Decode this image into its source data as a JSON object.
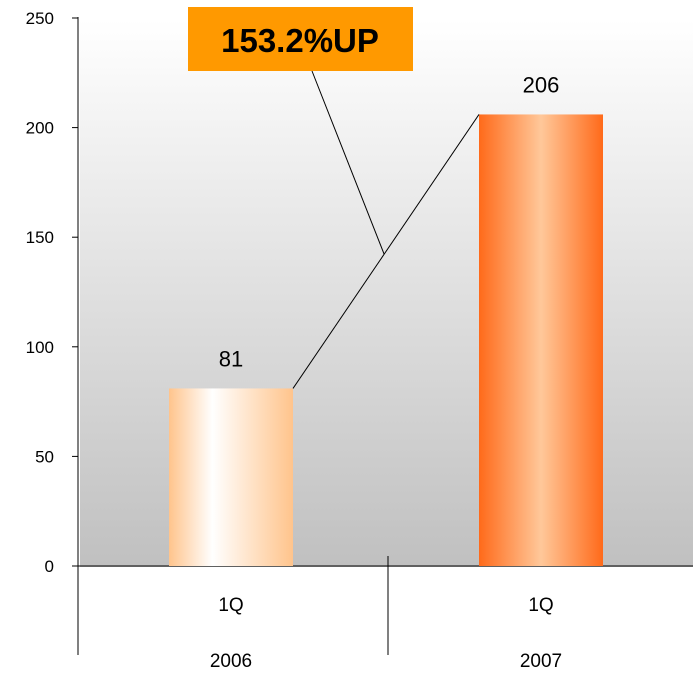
{
  "chart_data": {
    "type": "bar",
    "categories": [
      {
        "quarter": "1Q",
        "year": "2006"
      },
      {
        "quarter": "1Q",
        "year": "2007"
      }
    ],
    "values": [
      81,
      206
    ],
    "data_labels": [
      "81",
      "206"
    ],
    "ylim": [
      0,
      250
    ],
    "y_ticks": [
      0,
      50,
      100,
      150,
      200,
      250
    ],
    "y_tick_labels": [
      "0",
      "50",
      "100",
      "150",
      "200",
      "250"
    ],
    "title": "",
    "xlabel": "",
    "ylabel": "",
    "grid": false,
    "legend": "none",
    "annotation": {
      "text": "153.2%UP",
      "background": "#FF9900"
    },
    "colors": {
      "bar_2006_edge": "#FFC48C",
      "bar_2006_center": "#FFFFFF",
      "bar_2007_edge": "#FF6A1A",
      "bar_2007_center": "#FFC89A",
      "plot_background_top": "#FFFFFF",
      "plot_background_bottom": "#C0C0C0"
    }
  }
}
